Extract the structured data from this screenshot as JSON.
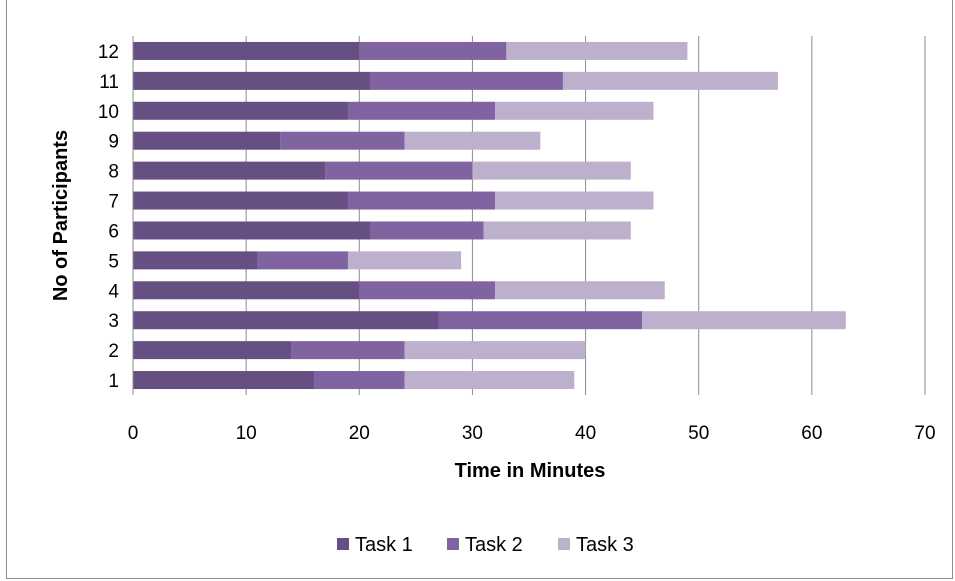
{
  "chart_data": {
    "type": "bar",
    "orientation": "horizontal",
    "stacked": true,
    "title": "",
    "xlabel": "Time in Minutes",
    "ylabel": "No of Participants",
    "xlim": [
      0,
      70
    ],
    "x_ticks": [
      0,
      10,
      20,
      30,
      40,
      50,
      60,
      70
    ],
    "grid": "vertical",
    "legend_position": "bottom",
    "categories": [
      "1",
      "2",
      "3",
      "4",
      "5",
      "6",
      "7",
      "8",
      "9",
      "10",
      "11",
      "12"
    ],
    "series": [
      {
        "name": "Task 1",
        "color": "#664f82",
        "values": [
          16,
          14,
          27,
          20,
          11,
          21,
          19,
          17,
          13,
          19,
          21,
          20
        ]
      },
      {
        "name": "Task 2",
        "color": "#8064a2",
        "values": [
          8,
          10,
          18,
          12,
          8,
          10,
          13,
          13,
          11,
          13,
          17,
          13
        ]
      },
      {
        "name": "Task 3",
        "color": "#bcb0cd",
        "values": [
          15,
          16,
          18,
          15,
          10,
          13,
          14,
          14,
          12,
          14,
          19,
          16
        ]
      }
    ]
  }
}
